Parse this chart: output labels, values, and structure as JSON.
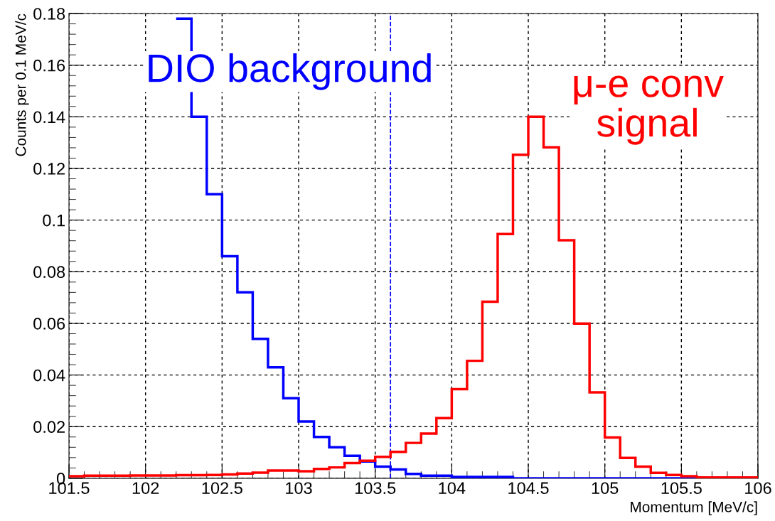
{
  "chart_data": {
    "type": "histogram",
    "xlabel": "Momentum [MeV/c]",
    "ylabel": "Counts per 0.1 MeV/c",
    "bins": [
      101.5,
      101.6,
      101.7,
      101.8,
      101.9,
      102.0,
      102.1,
      102.2,
      102.3,
      102.4,
      102.5,
      102.6,
      102.7,
      102.8,
      102.9,
      103.0,
      103.1,
      103.2,
      103.3,
      103.4,
      103.5,
      103.6,
      103.7,
      103.8,
      103.9,
      104.0,
      104.1,
      104.2,
      104.3,
      104.4,
      104.5,
      104.6,
      104.7,
      104.8,
      104.9,
      105.0,
      105.1,
      105.2,
      105.3,
      105.4,
      105.5,
      105.6,
      105.7,
      105.8,
      105.9,
      106.0
    ],
    "series": [
      {
        "name": "DIO background",
        "color": "#0000ff",
        "bins": [
          102.2,
          102.3,
          102.4,
          102.5,
          102.6,
          102.7,
          102.8,
          102.9,
          103.0,
          103.1,
          103.2,
          103.3,
          103.4,
          103.5,
          103.6,
          103.7,
          103.8,
          103.9,
          104.0,
          104.1,
          104.2,
          104.3,
          104.4,
          104.5,
          104.6,
          104.7,
          104.8,
          104.9,
          105.0,
          105.1,
          105.2,
          105.3,
          105.4,
          105.5,
          105.6,
          105.7,
          105.8,
          105.9,
          106.0
        ],
        "values": [
          0.178,
          0.14,
          0.11,
          0.086,
          0.072,
          0.054,
          0.043,
          0.031,
          0.022,
          0.016,
          0.012,
          0.0087,
          0.0065,
          0.0045,
          0.0034,
          0.0017,
          0.001,
          0.001,
          0.0005,
          0.0005,
          0.0005,
          0.0005,
          0,
          0,
          0,
          0,
          0,
          0,
          0,
          0,
          0,
          0,
          0,
          0,
          0,
          0,
          0,
          0
        ]
      },
      {
        "name": "μ-e conv\nsignal",
        "color": "#ff0000",
        "values": [
          0.0008,
          0.001,
          0.001,
          0.001,
          0.0011,
          0.0011,
          0.0011,
          0.0012,
          0.0012,
          0.0013,
          0.0015,
          0.0018,
          0.0022,
          0.003,
          0.003,
          0.0027,
          0.0036,
          0.0042,
          0.0059,
          0.0068,
          0.0083,
          0.0102,
          0.0137,
          0.0173,
          0.0233,
          0.0345,
          0.0455,
          0.0684,
          0.0946,
          0.1253,
          0.14,
          0.1282,
          0.0922,
          0.0599,
          0.0333,
          0.0158,
          0.0079,
          0.0045,
          0.0021,
          0.0013,
          0.0008,
          0.0003,
          0.0003,
          0.0003,
          0.0003
        ]
      }
    ],
    "ref_lines": [
      {
        "axis": "x",
        "value": 103.6,
        "color": "#0000ff",
        "line_style": "dashed"
      }
    ],
    "xlim": [
      101.5,
      106
    ],
    "ylim": [
      0,
      0.18
    ],
    "xticks": [
      101.5,
      102,
      102.5,
      103,
      103.5,
      104,
      104.5,
      105,
      105.5,
      106
    ],
    "yticks": [
      0,
      0.02,
      0.04,
      0.06,
      0.08,
      0.1,
      0.12,
      0.14,
      0.16,
      0.18
    ],
    "grid": true,
    "legend": false
  }
}
